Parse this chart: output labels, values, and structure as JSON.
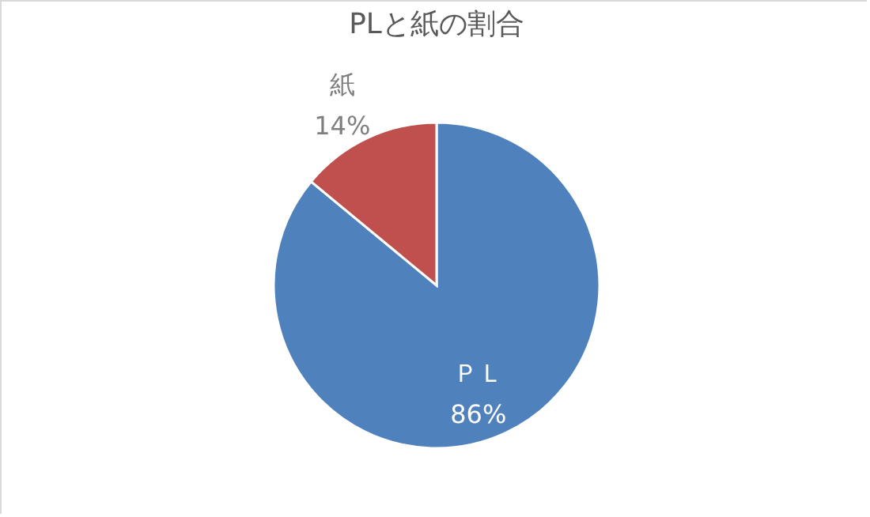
{
  "chart_data": {
    "type": "pie",
    "title": "PLと紙の割合",
    "categories": [
      "ＰＬ",
      "紙"
    ],
    "values": [
      86,
      14
    ],
    "colors": [
      "#4f81bd",
      "#c0504d"
    ],
    "value_labels": [
      "86%",
      "14%"
    ],
    "legend": false
  }
}
